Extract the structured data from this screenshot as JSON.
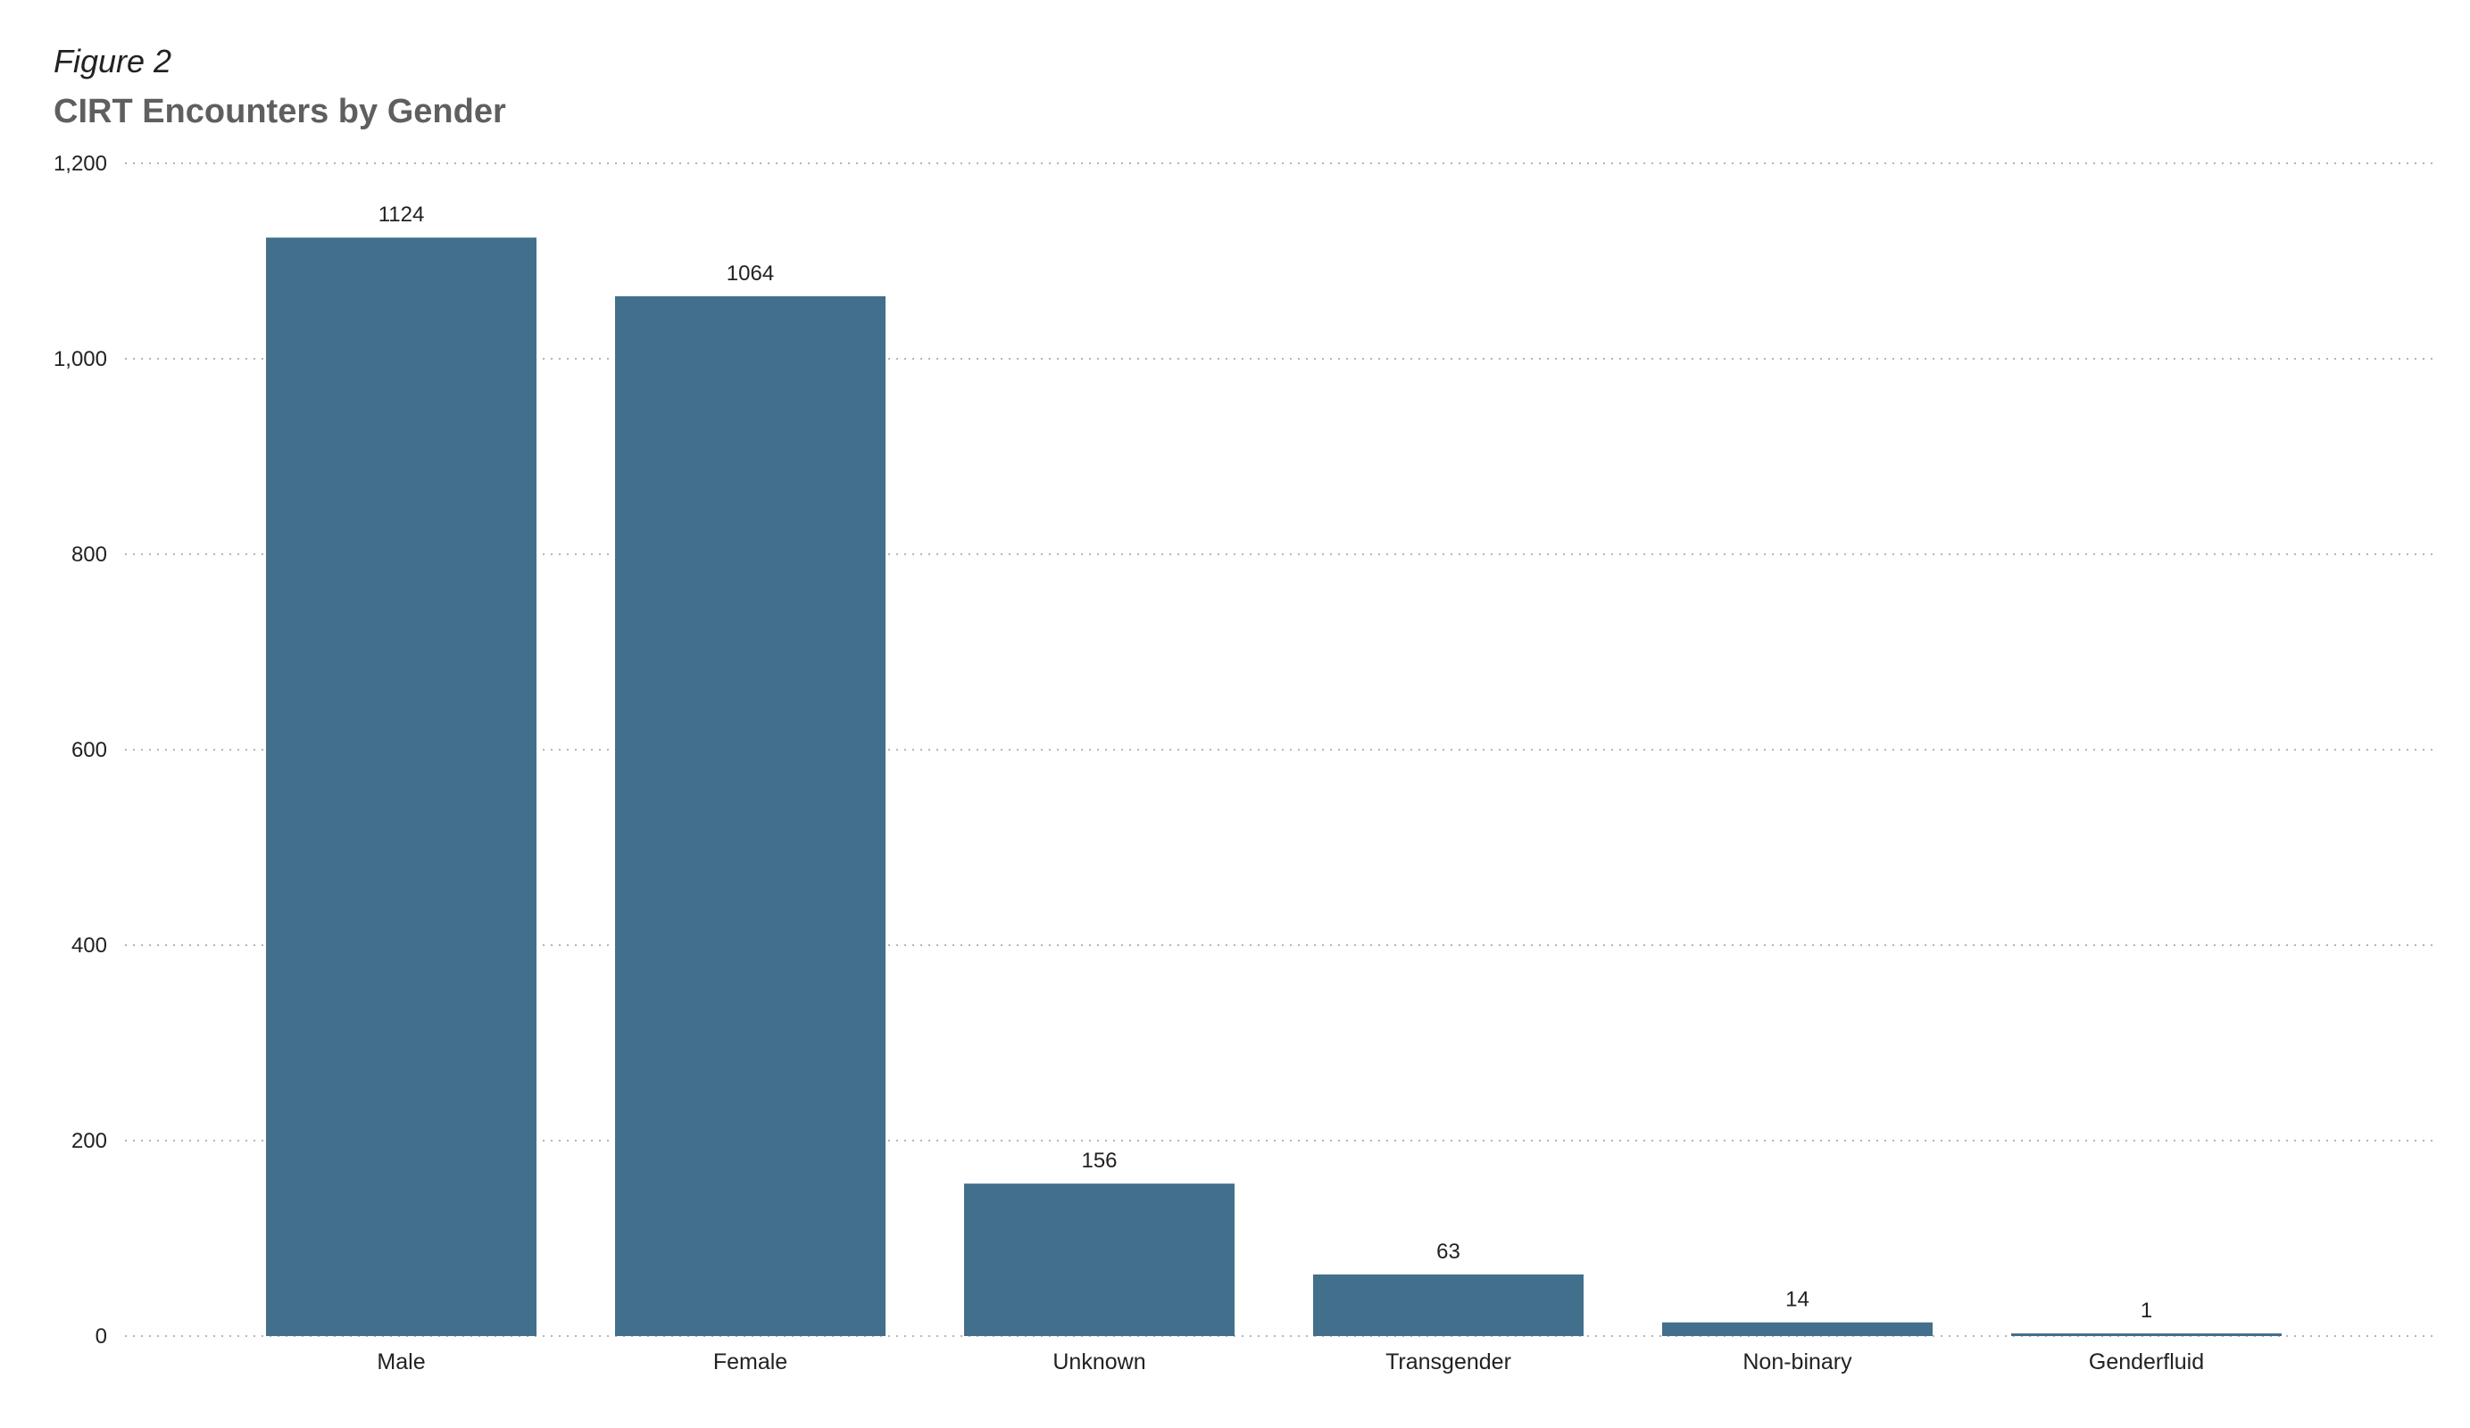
{
  "figure_label": "Figure 2",
  "chart_data": {
    "type": "bar",
    "title": "CIRT Encounters by Gender",
    "xlabel": "",
    "ylabel": "",
    "categories": [
      "Male",
      "Female",
      "Unknown",
      "Transgender",
      "Non-binary",
      "Genderfluid"
    ],
    "values": [
      1124,
      1064,
      156,
      63,
      14,
      1
    ],
    "data_labels": [
      "1124",
      "1064",
      "156",
      "63",
      "14",
      "1"
    ],
    "ylim": [
      0,
      1200
    ],
    "yticks": [
      0,
      200,
      400,
      600,
      800,
      1000,
      1200
    ],
    "ytick_labels": [
      "0",
      "200",
      "400",
      "600",
      "800",
      "1,000",
      "1,200"
    ],
    "grid": true,
    "legend": "none",
    "bar_color": "#426f8c"
  }
}
